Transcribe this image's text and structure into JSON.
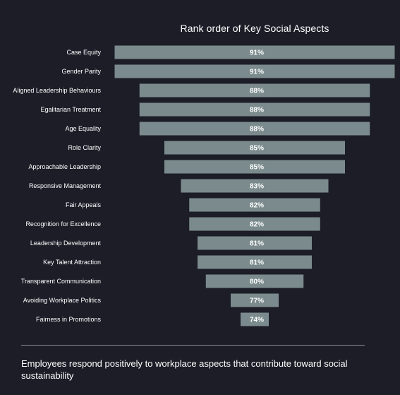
{
  "chart_data": {
    "type": "bar",
    "orientation": "horizontal",
    "style": "funnel-centered",
    "title": "Rank order of Key Social Aspects",
    "categories": [
      "Case Equity",
      "Gender Parity",
      "Aligned Leadership Behaviours",
      "Egalitarian Treatment",
      "Age Equality",
      "Role Clarity",
      "Approachable Leadership",
      "Responsive Management",
      "Fair Appeals",
      "Recognition for Excellence",
      "Leadership Development",
      "Key Talent Attraction",
      "Transparent Communication",
      "Avoiding Workplace Politics",
      "Fairness in Promotions"
    ],
    "values": [
      91,
      91,
      88,
      88,
      88,
      85,
      85,
      83,
      82,
      82,
      81,
      81,
      80,
      77,
      74
    ],
    "value_labels": [
      "91%",
      "91%",
      "88%",
      "88%",
      "88%",
      "85%",
      "85%",
      "83%",
      "82%",
      "82%",
      "81%",
      "81%",
      "80%",
      "77%",
      "74%"
    ],
    "unit": "%",
    "grid": false,
    "legend": "none",
    "bar_color": "#7b8b8d",
    "background_color": "#1c1d27",
    "text_color": "#ffffff"
  },
  "footer": {
    "caption": "Employees respond positively to workplace aspects that contribute toward social sustainability"
  }
}
